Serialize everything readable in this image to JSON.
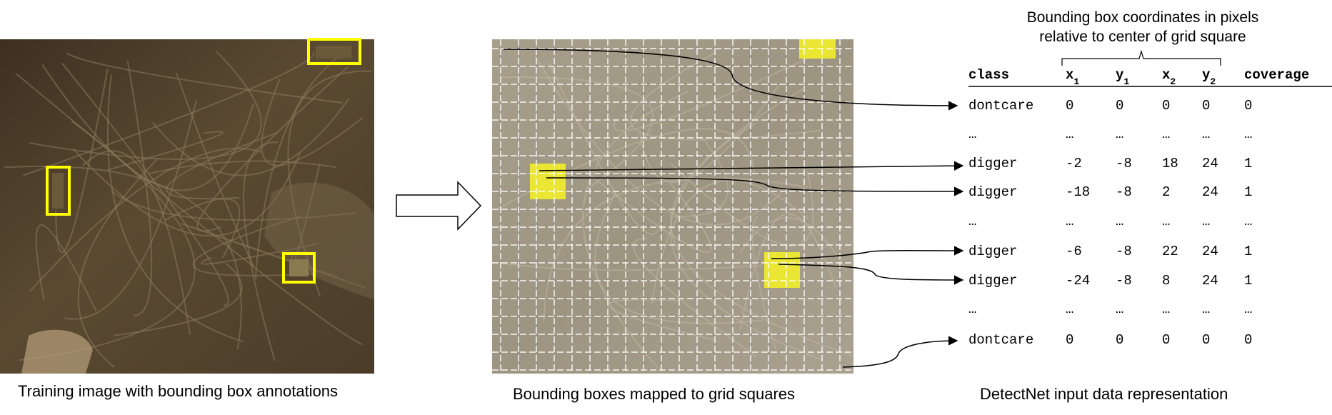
{
  "captions": {
    "left": "Training image with bounding box annotations",
    "middle": "Bounding boxes mapped to grid squares",
    "right": "DetectNet input data representation"
  },
  "header_note": {
    "line1": "Bounding box coordinates in pixels",
    "line2": "relative to center of grid square"
  },
  "table": {
    "headers": [
      {
        "base": "class",
        "sub": ""
      },
      {
        "base": "x",
        "sub": "1"
      },
      {
        "base": "y",
        "sub": "1"
      },
      {
        "base": "x",
        "sub": "2"
      },
      {
        "base": "y",
        "sub": "2"
      },
      {
        "base": "coverage",
        "sub": ""
      }
    ],
    "rows": [
      [
        "dontcare",
        "0",
        "0",
        "0",
        "0",
        "0"
      ],
      [
        "…",
        "…",
        "…",
        "…",
        "…",
        "…"
      ],
      [
        "digger",
        "-2",
        "-8",
        "18",
        "24",
        "1"
      ],
      [
        "digger",
        "-18",
        "-8",
        "2",
        "24",
        "1"
      ],
      [
        "…",
        "…",
        "…",
        "…",
        "…",
        "…"
      ],
      [
        "digger",
        "-6",
        "-8",
        "22",
        "24",
        "1"
      ],
      [
        "digger",
        "-24",
        "-8",
        "8",
        "24",
        "1"
      ],
      [
        "…",
        "…",
        "…",
        "…",
        "…",
        "…"
      ],
      [
        "dontcare",
        "0",
        "0",
        "0",
        "0",
        "0"
      ]
    ]
  },
  "colors": {
    "annotation_box": "#ffff00",
    "highlight_cell": "#f2ee2a",
    "grid_line": "#ffffff",
    "dirt_dark": "#4a3b26",
    "dirt_light": "#9a8a70",
    "grid_bg": "#a49a88"
  }
}
